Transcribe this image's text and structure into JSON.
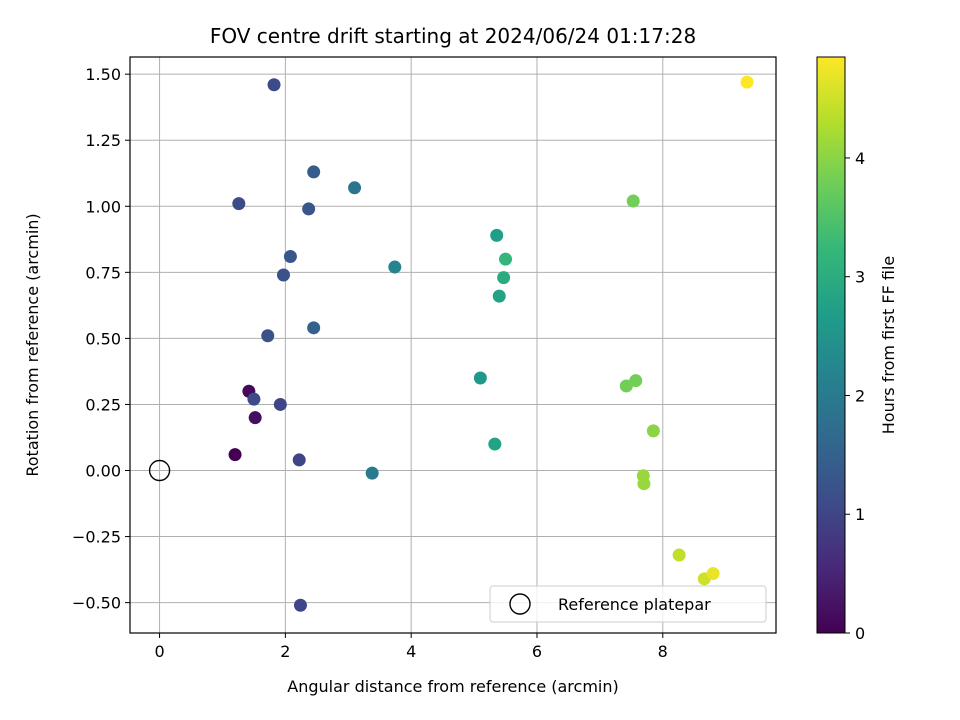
{
  "chart_data": {
    "type": "scatter",
    "title": "FOV centre drift starting at 2024/06/24 01:17:28",
    "xlabel": "Angular distance from reference (arcmin)",
    "ylabel": "Rotation from reference (arcmin)",
    "xlim": [
      -0.47,
      9.8
    ],
    "ylim": [
      -0.615,
      1.565
    ],
    "xticks": [
      0,
      2,
      4,
      6,
      8
    ],
    "xtick_labels": [
      "0",
      "2",
      "4",
      "6",
      "8"
    ],
    "yticks": [
      -0.5,
      -0.25,
      0.0,
      0.25,
      0.5,
      0.75,
      1.0,
      1.25,
      1.5
    ],
    "ytick_labels": [
      "−0.50",
      "−0.25",
      "0.00",
      "0.25",
      "0.50",
      "0.75",
      "1.00",
      "1.25",
      "1.50"
    ],
    "grid": true,
    "colormap": "viridis",
    "colorbar": {
      "label": "Hours from first FF file",
      "range": [
        0,
        4.85
      ],
      "ticks": [
        0,
        1,
        2,
        3,
        4
      ],
      "tick_labels": [
        "0",
        "1",
        "2",
        "3",
        "4"
      ]
    },
    "legend": {
      "placement": "lower right",
      "entries": [
        "Reference platepar"
      ]
    },
    "reference_point": {
      "x": 0,
      "y": 0
    },
    "points": [
      {
        "x": 1.2,
        "y": 0.06,
        "hours": 0.0
      },
      {
        "x": 1.42,
        "y": 0.3,
        "hours": 0.1
      },
      {
        "x": 1.52,
        "y": 0.2,
        "hours": 0.2
      },
      {
        "x": 1.5,
        "y": 0.27,
        "hours": 1.1
      },
      {
        "x": 1.92,
        "y": 0.25,
        "hours": 1.0
      },
      {
        "x": 2.22,
        "y": 0.04,
        "hours": 1.0
      },
      {
        "x": 2.24,
        "y": -0.51,
        "hours": 1.0
      },
      {
        "x": 1.82,
        "y": 1.46,
        "hours": 1.1
      },
      {
        "x": 1.26,
        "y": 1.01,
        "hours": 1.1
      },
      {
        "x": 1.72,
        "y": 0.51,
        "hours": 1.2
      },
      {
        "x": 1.97,
        "y": 0.74,
        "hours": 1.2
      },
      {
        "x": 2.08,
        "y": 0.81,
        "hours": 1.3
      },
      {
        "x": 2.37,
        "y": 0.99,
        "hours": 1.3
      },
      {
        "x": 2.45,
        "y": 1.13,
        "hours": 1.4
      },
      {
        "x": 2.45,
        "y": 0.54,
        "hours": 1.5
      },
      {
        "x": 3.1,
        "y": 1.07,
        "hours": 1.9
      },
      {
        "x": 3.38,
        "y": -0.01,
        "hours": 2.0
      },
      {
        "x": 3.74,
        "y": 0.77,
        "hours": 2.2
      },
      {
        "x": 5.1,
        "y": 0.35,
        "hours": 2.6
      },
      {
        "x": 5.33,
        "y": 0.1,
        "hours": 2.8
      },
      {
        "x": 5.36,
        "y": 0.89,
        "hours": 2.7
      },
      {
        "x": 5.4,
        "y": 0.66,
        "hours": 2.8
      },
      {
        "x": 5.47,
        "y": 0.73,
        "hours": 3.0
      },
      {
        "x": 5.5,
        "y": 0.8,
        "hours": 3.2
      },
      {
        "x": 7.42,
        "y": 0.32,
        "hours": 3.8
      },
      {
        "x": 7.57,
        "y": 0.34,
        "hours": 3.8
      },
      {
        "x": 7.53,
        "y": 1.02,
        "hours": 3.8
      },
      {
        "x": 7.85,
        "y": 0.15,
        "hours": 4.0
      },
      {
        "x": 7.69,
        "y": -0.02,
        "hours": 4.1
      },
      {
        "x": 7.7,
        "y": -0.05,
        "hours": 4.1
      },
      {
        "x": 8.26,
        "y": -0.32,
        "hours": 4.4
      },
      {
        "x": 8.66,
        "y": -0.41,
        "hours": 4.5
      },
      {
        "x": 8.8,
        "y": -0.39,
        "hours": 4.7
      },
      {
        "x": 9.34,
        "y": 1.47,
        "hours": 4.85
      }
    ]
  }
}
